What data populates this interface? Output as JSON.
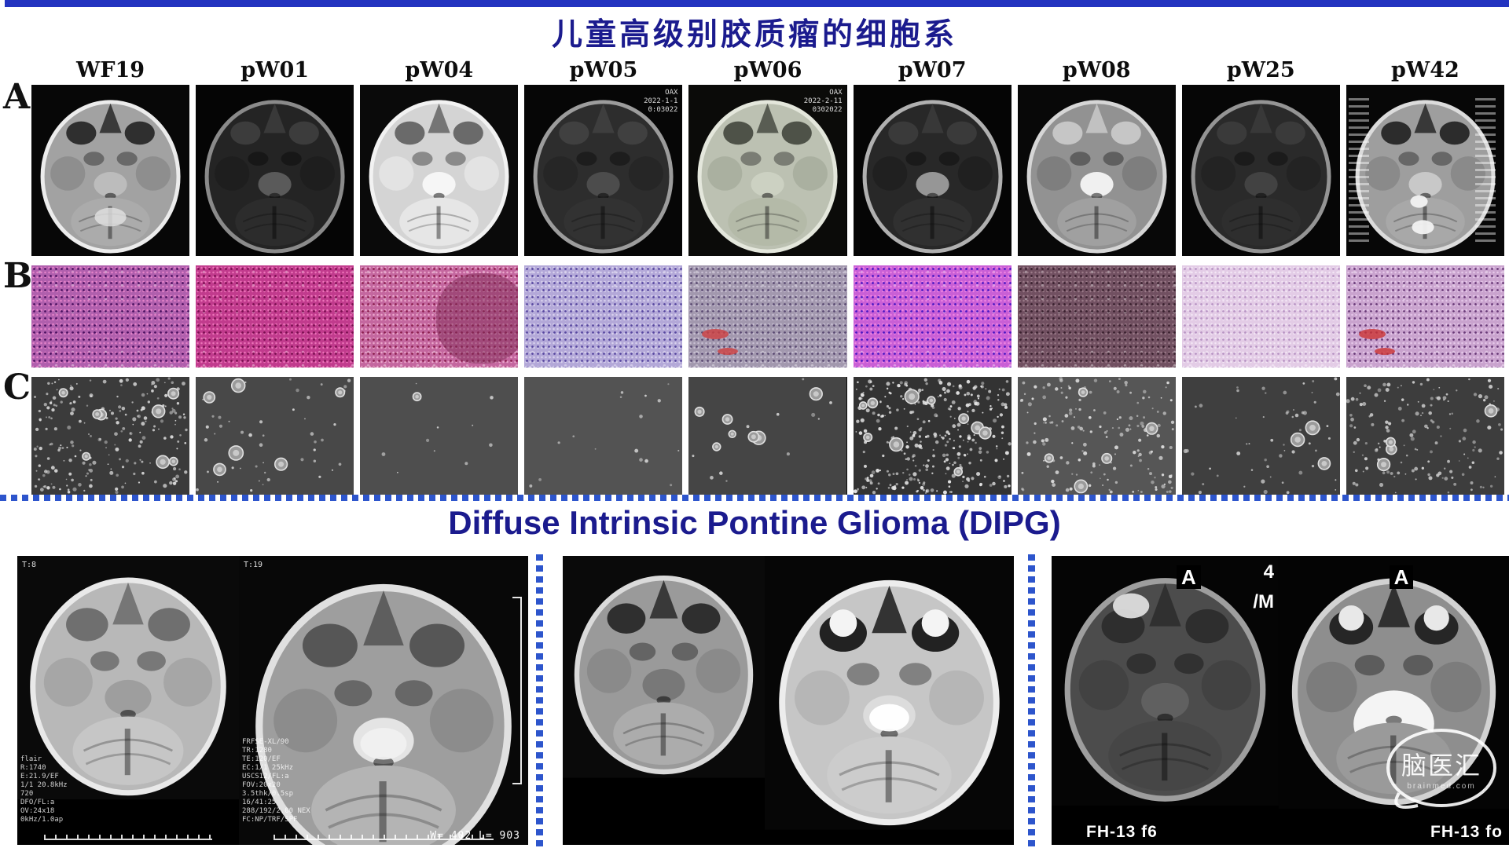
{
  "slide": {
    "title": "儿童高级别胶质瘤的细胞系",
    "subtitle": "Diffuse Intrinsic Pontine Glioma (DIPG)",
    "title_color": "#1b1b8e",
    "divider_color": "#2d55cc",
    "topbar_color": "#2334c0"
  },
  "row_labels": [
    "A",
    "B",
    "C"
  ],
  "columns": [
    {
      "id": "WF19",
      "mri": {
        "overlay": [],
        "features": [
          "cereb-blob"
        ],
        "tones": {
          "bg": "#070707",
          "skull": "#ececec",
          "brain": "#a2a2a2",
          "orbit": "#2f2f2f",
          "temporal": "#8e8e8e",
          "pons": "#bcbcbc",
          "cereb": "#ababab",
          "blob": "#dedede"
        }
      },
      "hist": {
        "base": "#b05fad",
        "spot1": "#4a1060",
        "spot2": "#e583c9"
      },
      "spheres": {
        "bg": "#3b3b3b",
        "small": 220,
        "medium": 8,
        "dot": "#d6d6d6"
      }
    },
    {
      "id": "pW01",
      "mri": {
        "overlay": [],
        "features": [],
        "tones": {
          "bg": "#050505",
          "skull": "#8a8a8a",
          "brain": "#242424",
          "orbit": "#3c3c3c",
          "temporal": "#1e1e1e",
          "pons": "#5a5a5a",
          "cereb": "#2c2c2c"
        }
      },
      "hist": {
        "base": "#c13b8d",
        "spot1": "#7a0f50",
        "spot2": "#ec74b8"
      },
      "spheres": {
        "bg": "#484848",
        "small": 45,
        "medium": 6,
        "dot": "#cfcfcf"
      }
    },
    {
      "id": "pW04",
      "mri": {
        "overlay": [],
        "features": [],
        "tones": {
          "bg": "#0a0a0a",
          "skull": "#f2f2f2",
          "brain": "#d4d4d4",
          "orbit": "#6a6a6a",
          "temporal": "#e3e3e3",
          "pons": "#f6f6f6",
          "cereb": "#e6e6e6"
        }
      },
      "hist": {
        "base": "#c4679f",
        "spot1": "#8c2050",
        "spot2": "#eba7cc",
        "patch": "#7e2c55"
      },
      "spheres": {
        "bg": "#4e4e4e",
        "small": 10,
        "medium": 1,
        "dot": "#c8c8c8"
      }
    },
    {
      "id": "pW05",
      "mri": {
        "overlay": [
          "OAX",
          "2022-1-1",
          "0:03022"
        ],
        "features": [],
        "tones": {
          "bg": "#060606",
          "skull": "#9c9c9c",
          "brain": "#2d2d2d",
          "orbit": "#404040",
          "temporal": "#262626",
          "pons": "#4c4c4c",
          "cereb": "#323232"
        }
      },
      "hist": {
        "base": "#b3a8d8",
        "spot1": "#5848a0",
        "spot2": "#d8d2ee"
      },
      "spheres": {
        "bg": "#535353",
        "small": 16,
        "medium": 0,
        "dot": "#cccccc"
      }
    },
    {
      "id": "pW06",
      "mri": {
        "overlay": [
          "OAX",
          "2022-2-11",
          "0302022"
        ],
        "features": [],
        "tones": {
          "bg": "#0b0b09",
          "skull": "#e4e7dc",
          "brain": "#bcc1b2",
          "orbit": "#4e5248",
          "temporal": "#aab0a0",
          "pons": "#ccd1c2",
          "cereb": "#b4baa8"
        }
      },
      "hist": {
        "base": "#a298ae",
        "spot1": "#5a4a72",
        "spot2": "#c8bfd2",
        "fleck": "#d04040"
      },
      "spheres": {
        "bg": "#454545",
        "small": 12,
        "medium": 7,
        "dot": "#d0d0d0"
      }
    },
    {
      "id": "pW07",
      "mri": {
        "overlay": [],
        "features": [],
        "tones": {
          "bg": "#050505",
          "skull": "#b0b0b0",
          "brain": "#282828",
          "orbit": "#3a3a3a",
          "temporal": "#202020",
          "pons": "#969696",
          "cereb": "#303030"
        }
      },
      "hist": {
        "base": "#c95fd6",
        "spot1": "#4a17c2",
        "spot2": "#ef86e2"
      },
      "spheres": {
        "bg": "#333333",
        "small": 320,
        "medium": 10,
        "dot": "#e2e2e2"
      }
    },
    {
      "id": "pW08",
      "mri": {
        "overlay": [],
        "features": [],
        "tones": {
          "bg": "#080808",
          "skull": "#d6d6d6",
          "brain": "#929292",
          "orbit": "#c6c6c6",
          "temporal": "#7e7e7e",
          "pons": "#f0f0f0",
          "cereb": "#a0a0a0"
        }
      },
      "hist": {
        "base": "#715061",
        "spot1": "#39202e",
        "spot2": "#9a7a88"
      },
      "spheres": {
        "bg": "#565656",
        "small": 170,
        "medium": 5,
        "dot": "#d8d8d8"
      }
    },
    {
      "id": "pW25",
      "mri": {
        "overlay": [],
        "features": [],
        "tones": {
          "bg": "#060606",
          "skull": "#949494",
          "brain": "#2a2a2a",
          "orbit": "#3a3a3a",
          "temporal": "#232323",
          "pons": "#424242",
          "cereb": "#2e2e2e"
        }
      },
      "hist": {
        "base": "#e3cce6",
        "spot1": "#b894c4",
        "spot2": "#f3e6f5"
      },
      "spheres": {
        "bg": "#3f3f3f",
        "small": 60,
        "medium": 3,
        "dot": "#c4c4c4"
      }
    },
    {
      "id": "pW42",
      "mri": {
        "overlay": [],
        "features": [
          "lower-blobs",
          "side-text"
        ],
        "tones": {
          "bg": "#070707",
          "skull": "#dcdcdc",
          "brain": "#9e9e9e",
          "orbit": "#2c2c2c",
          "temporal": "#8a8a8a",
          "pons": "#c8c8c8",
          "cereb": "#a8a8a8",
          "blob": "#f2f2f2"
        }
      },
      "hist": {
        "base": "#c9a3ce",
        "spot1": "#693a78",
        "spot2": "#e6c8ea",
        "fleck": "#cc3333"
      },
      "spheres": {
        "bg": "#3d3d3d",
        "small": 150,
        "medium": 4,
        "dot": "#cfcfcf"
      }
    }
  ],
  "dipg_panels": [
    {
      "images": [
        {
          "top_label": "T:8",
          "param_lines": [
            "flair",
            "R:1740",
            "E:21.9/EF",
            "1/1 20.8kHz",
            "720",
            "DFO/FL:a",
            "OV:24x18",
            "0kHz/1.0ap"
          ],
          "bottom_label": "",
          "corner_labels": [],
          "features": [
            "ruler"
          ],
          "tones": {
            "bg": "#0a0a0a",
            "skull": "#e9e9e9",
            "brain": "#b8b8b8",
            "orbit": "#6f6f6f",
            "temporal": "#a6a6a6",
            "pons": "#9e9e9e",
            "cereb": "#c6c6c6"
          }
        },
        {
          "top_label": "T:19",
          "param_lines": [
            "FRFSE-XL/90",
            "TR:1280",
            "TE:120/EF",
            "EC:1/1 25kHz",
            "USCS12/FL:a",
            "FOV:20x20",
            "3.5thk/0.5sp",
            "16/41:25",
            "288/192/2.00 NEX",
            "FC:NP/TRF/SPF"
          ],
          "bottom_label": "W= 402 L= 903",
          "corner_labels": [],
          "features": [
            "ruler",
            "bracket",
            "pons-blob"
          ],
          "tones": {
            "bg": "#080808",
            "skull": "#e0e0e0",
            "brain": "#9e9e9e",
            "orbit": "#565656",
            "temporal": "#8c8c8c",
            "pons": "#e4e4e4",
            "cereb": "#b4b4b4",
            "blob": "#f0f0f0"
          }
        }
      ]
    },
    {
      "images": [
        {
          "top_label": "",
          "param_lines": [],
          "bottom_label": "",
          "corner_labels": [],
          "features": [],
          "tones": {
            "bg": "#0a0a0a",
            "skull": "#dadada",
            "brain": "#9a9a9a",
            "orbit": "#2f2f2f",
            "temporal": "#8a8a8a",
            "pons": "#787878",
            "cereb": "#acacac"
          }
        },
        {
          "top_label": "",
          "param_lines": [],
          "bottom_label": "",
          "corner_labels": [],
          "features": [
            "eyes",
            "pons-blob"
          ],
          "tones": {
            "bg": "#060606",
            "skull": "#ededed",
            "brain": "#c6c6c6",
            "orbit": "#222222",
            "eye": "#f4f4f4",
            "temporal": "#b6b6b6",
            "pons": "#dcdcdc",
            "cereb": "#cccccc",
            "blob": "#ffffff"
          }
        }
      ]
    },
    {
      "images": [
        {
          "top_label": "",
          "param_lines": [],
          "bottom_label": "FH-13 f6",
          "corner_labels": [
            "A",
            "4",
            "/M"
          ],
          "features": [
            "frontal-blob"
          ],
          "tones": {
            "bg": "#050505",
            "skull": "#9e9e9e",
            "brain": "#4c4c4c",
            "orbit": "#2e2e2e",
            "temporal": "#424242",
            "pons": "#606060",
            "cereb": "#464646",
            "blob": "#e6e6e6"
          }
        },
        {
          "top_label": "",
          "param_lines": [],
          "bottom_label": "FH-13 fo",
          "corner_labels": [
            "A"
          ],
          "features": [
            "eyes",
            "big-pons"
          ],
          "tones": {
            "bg": "#040404",
            "skull": "#d2d2d2",
            "brain": "#8e8e8e",
            "orbit": "#262626",
            "eye": "#e8e8e8",
            "temporal": "#7c7c7c",
            "pons": "#f4f4f4",
            "cereb": "#9a9a9a"
          }
        }
      ]
    }
  ],
  "watermark": {
    "text": "脑医汇",
    "sub": "brainmed.com"
  }
}
